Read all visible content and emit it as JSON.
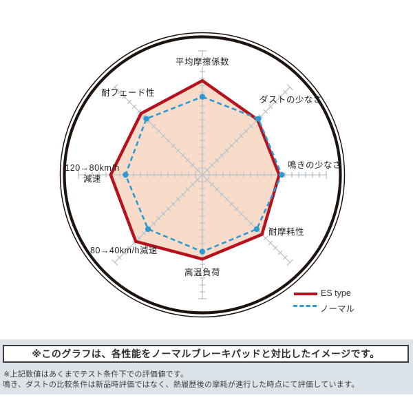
{
  "chart_data": {
    "type": "radar",
    "axis_count": 8,
    "scale_max": 10,
    "tick_step": 10,
    "axes": [
      {
        "label": "平均摩擦係数"
      },
      {
        "label": "ダストの少なさ"
      },
      {
        "label": "鳴きの少なさ"
      },
      {
        "label": "耐摩耗性"
      },
      {
        "label": "高温負荷"
      },
      {
        "label": "80→40km/h減速"
      },
      {
        "label": "120→80km/h減速",
        "line1": "120→80km/h",
        "line2": "減速"
      },
      {
        "label": "耐フェード性"
      }
    ],
    "series": [
      {
        "name": "ES type",
        "line": "solid",
        "color": "#b5121d",
        "values": [
          7.6,
          6.3,
          6.2,
          6.8,
          6.8,
          7.6,
          7.4,
          7.0
        ]
      },
      {
        "name": "ノーマル",
        "line": "dashed",
        "color": "#2e9ad2",
        "values": [
          6.3,
          6.4,
          6.4,
          6.2,
          6.2,
          6.2,
          6.2,
          6.4
        ]
      }
    ],
    "legend_position": "bottom-right",
    "grid": "ticks-on-axes"
  },
  "colors": {
    "es_red": "#b5121d",
    "normal_blue": "#2e9ad2",
    "es_fill": "#f8dbc9",
    "axis_gray": "#b6c4cd",
    "ring_black": "#1d1410",
    "panel_bg": "#dce3e9"
  },
  "notes": {
    "box_text": "※このグラフは、各性能をノーマルブレーキパッドと対比したイメージです。",
    "note1": "※上記数値はあくまでテスト条件下での評価値です。",
    "note2": "鳴き、ダストの比較条件は新品時評価ではなく、熱履歴後の摩耗が進行した時点にて評価しています。"
  }
}
